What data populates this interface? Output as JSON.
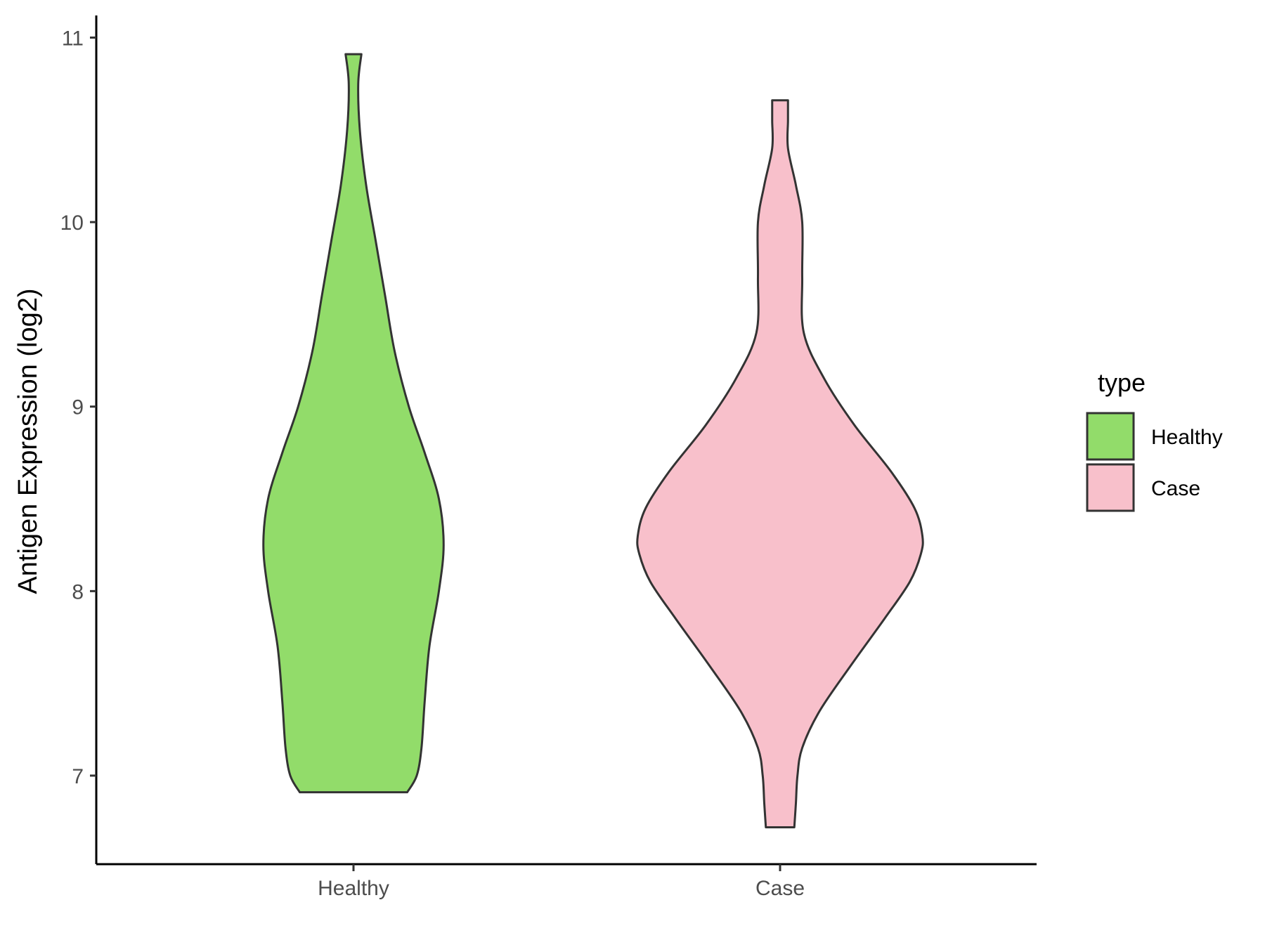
{
  "chart_data": {
    "type": "violin",
    "title": "",
    "xlabel": "",
    "ylabel": "Antigen Expression (log2)",
    "ylim": [
      6.52,
      11.12
    ],
    "yticks": [
      7,
      8,
      9,
      10,
      11
    ],
    "grid": false,
    "categories": [
      "Healthy",
      "Case"
    ],
    "legend": {
      "title": "type",
      "position": "right",
      "entries": [
        {
          "label": "Healthy",
          "color": "#92DC6A"
        },
        {
          "label": "Case",
          "color": "#F8C0CB"
        }
      ]
    },
    "series": [
      {
        "name": "Healthy",
        "color": "#92DC6A",
        "ymin": 6.91,
        "ymax": 10.91,
        "profile": [
          [
            6.91,
            0.34
          ],
          [
            7.0,
            0.4
          ],
          [
            7.15,
            0.43
          ],
          [
            7.4,
            0.45
          ],
          [
            7.7,
            0.48
          ],
          [
            8.0,
            0.54
          ],
          [
            8.25,
            0.57
          ],
          [
            8.5,
            0.54
          ],
          [
            8.75,
            0.45
          ],
          [
            9.0,
            0.35
          ],
          [
            9.3,
            0.26
          ],
          [
            9.6,
            0.2
          ],
          [
            9.9,
            0.14
          ],
          [
            10.2,
            0.08
          ],
          [
            10.5,
            0.04
          ],
          [
            10.75,
            0.03
          ],
          [
            10.91,
            0.05
          ]
        ]
      },
      {
        "name": "Case",
        "color": "#F8C0CB",
        "ymin": 6.72,
        "ymax": 10.66,
        "profile": [
          [
            6.72,
            0.09
          ],
          [
            6.85,
            0.1
          ],
          [
            7.0,
            0.11
          ],
          [
            7.15,
            0.14
          ],
          [
            7.35,
            0.25
          ],
          [
            7.6,
            0.45
          ],
          [
            7.85,
            0.66
          ],
          [
            8.05,
            0.82
          ],
          [
            8.2,
            0.89
          ],
          [
            8.3,
            0.9
          ],
          [
            8.45,
            0.85
          ],
          [
            8.65,
            0.7
          ],
          [
            8.9,
            0.47
          ],
          [
            9.15,
            0.28
          ],
          [
            9.4,
            0.15
          ],
          [
            9.7,
            0.14
          ],
          [
            10.0,
            0.14
          ],
          [
            10.2,
            0.1
          ],
          [
            10.4,
            0.05
          ],
          [
            10.55,
            0.05
          ],
          [
            10.66,
            0.05
          ]
        ]
      }
    ]
  }
}
